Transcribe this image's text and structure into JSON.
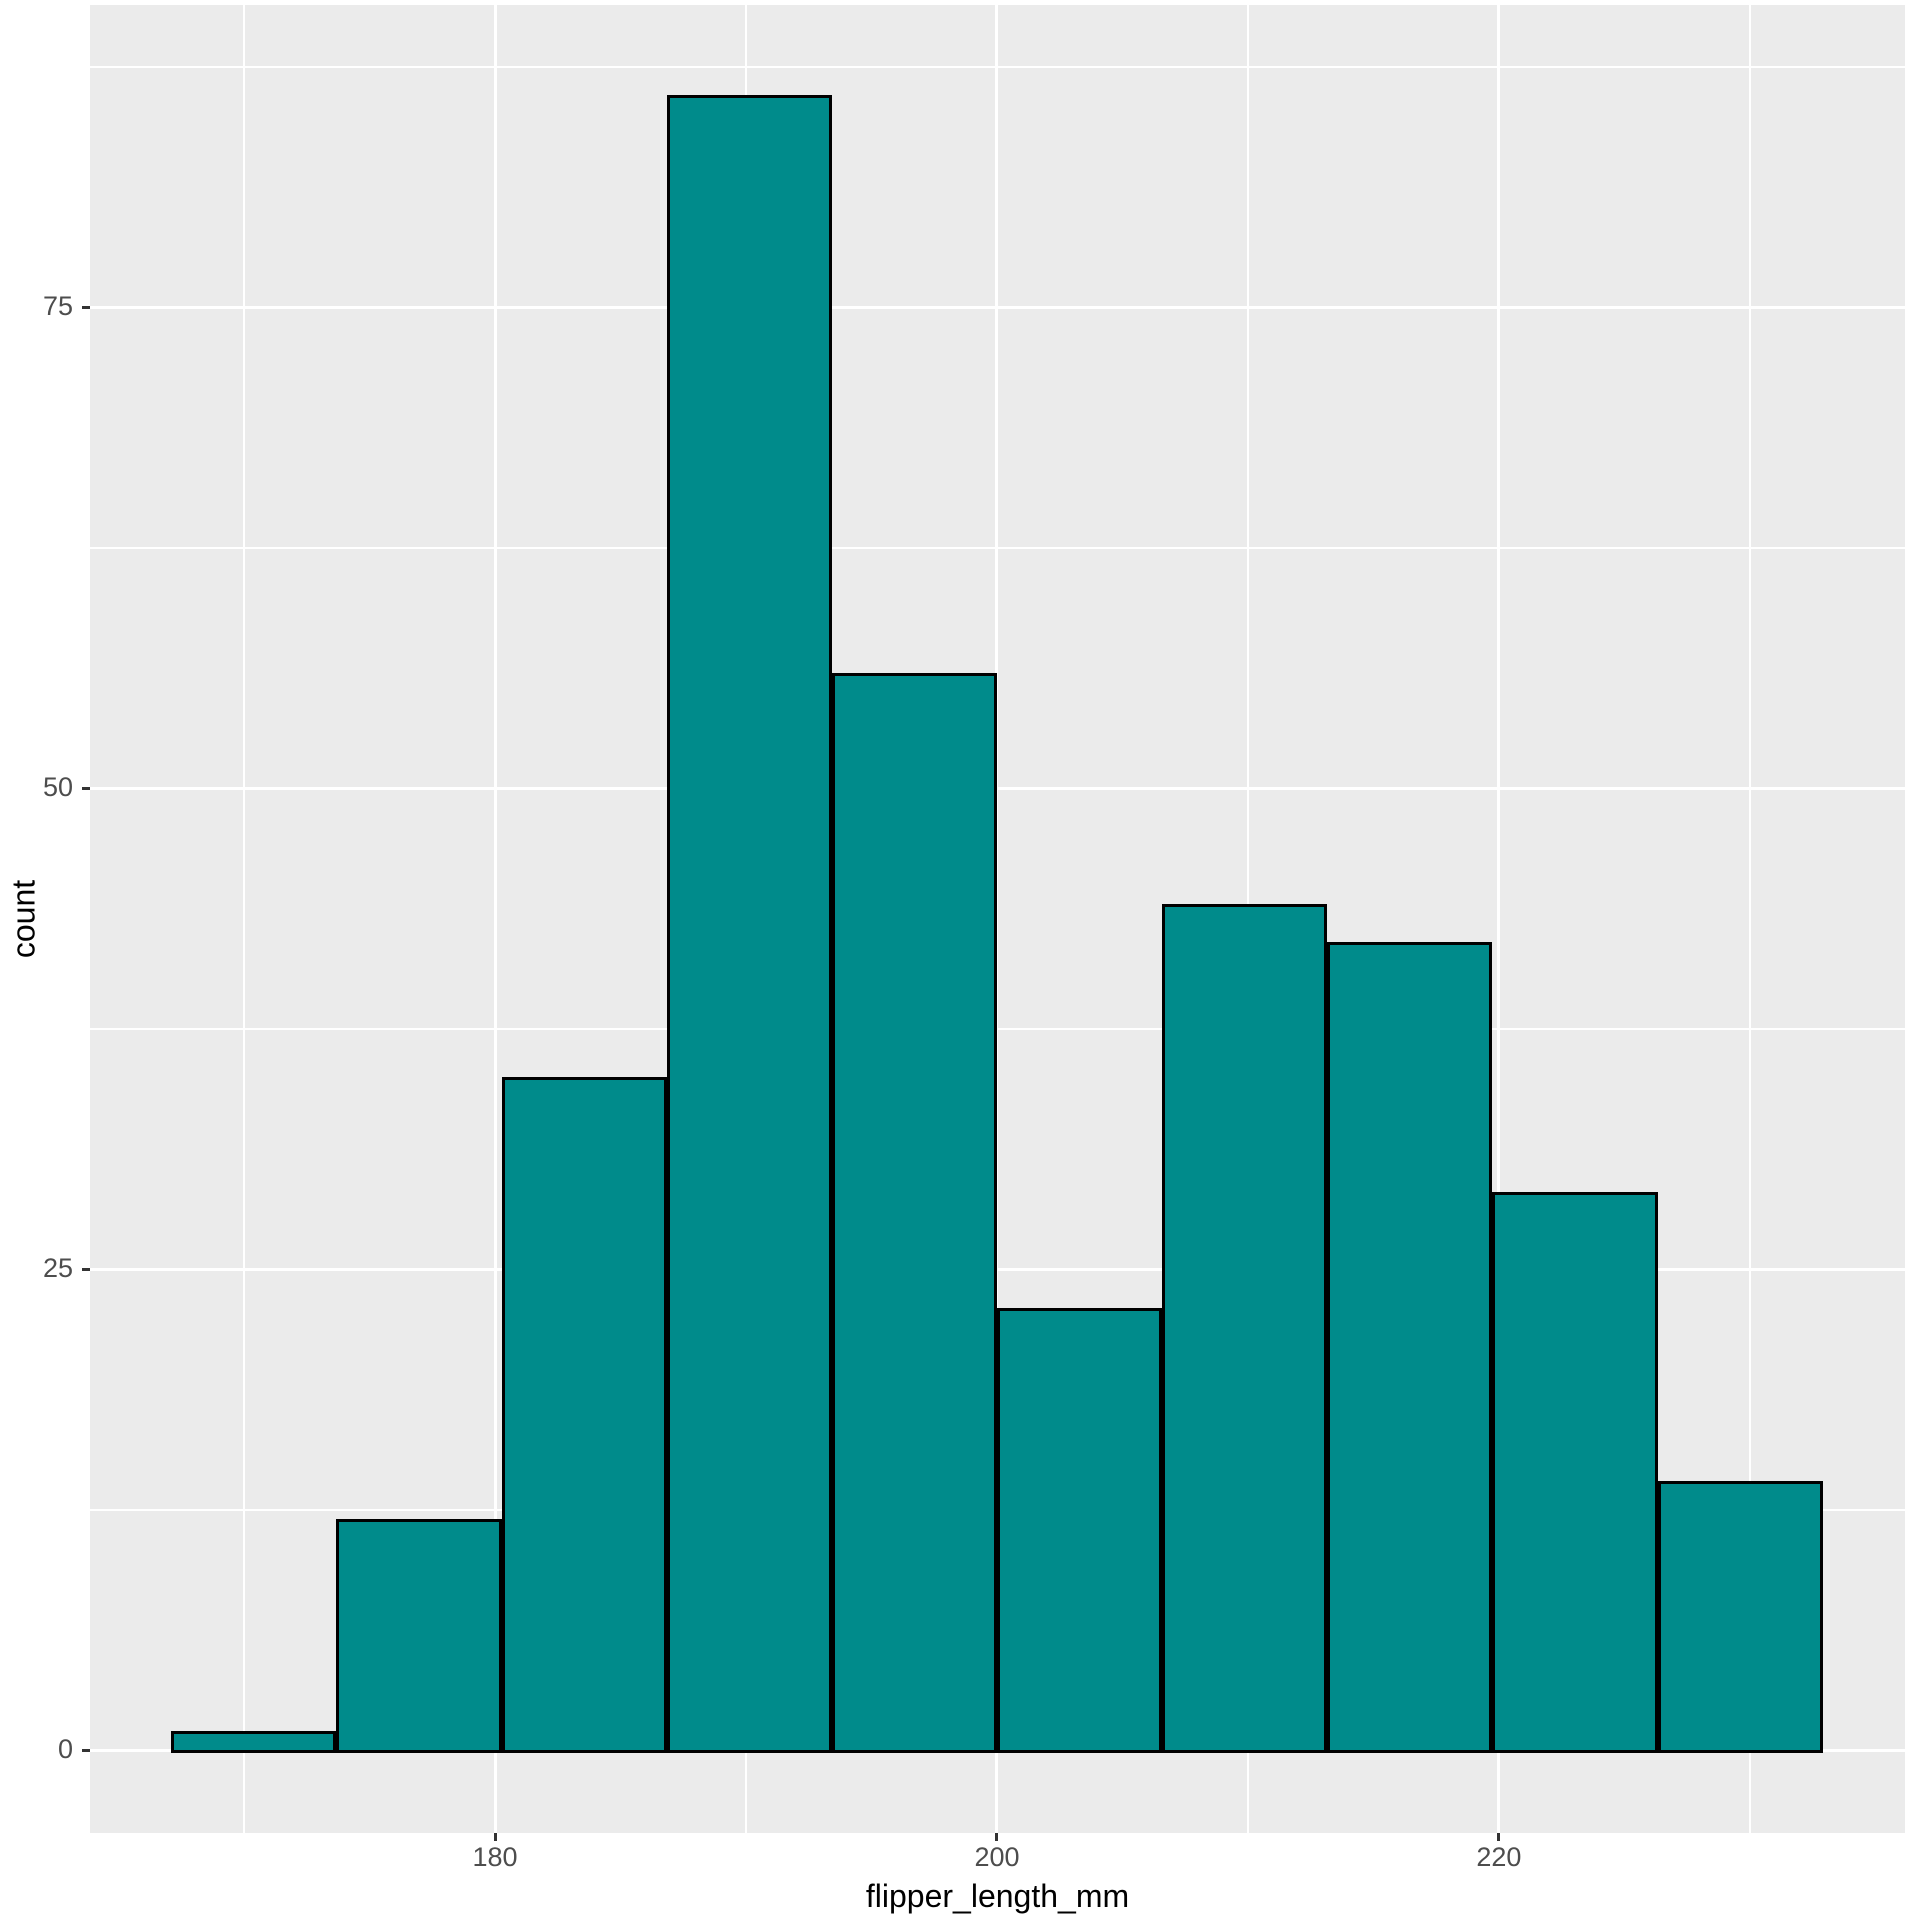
{
  "chart_data": {
    "type": "bar",
    "subtype": "histogram",
    "title": "",
    "xlabel": "flipper_length_mm",
    "ylabel": "count",
    "bin_edges": [
      167.1,
      173.68,
      180.26,
      186.84,
      193.42,
      200.0,
      206.58,
      213.16,
      219.74,
      226.32,
      232.9
    ],
    "counts": [
      1,
      12,
      35,
      86,
      56,
      23,
      44,
      42,
      29,
      14
    ],
    "total_n": 342,
    "x_major_ticks": [
      180,
      200,
      220
    ],
    "x_major_tick_labels": [
      "180",
      "200",
      "220"
    ],
    "x_minor_gridlines": [
      170,
      190,
      210,
      230
    ],
    "y_major_ticks": [
      0,
      25,
      50,
      75
    ],
    "y_major_tick_labels": [
      "0",
      "25",
      "50",
      "75"
    ],
    "y_minor_gridlines": [
      12.5,
      37.5,
      62.5,
      87.5
    ],
    "xlim": [
      163.86,
      236.18
    ],
    "ylim": [
      -4.3,
      90.7
    ],
    "grid": true,
    "legend": false
  },
  "style": {
    "bar_fill": "#008B8B",
    "bar_stroke": "#000000",
    "panel_bg": "#EBEBEB",
    "grid_color": "#FFFFFF",
    "tick_mark_color": "#333333",
    "tick_label_color": "#4D4D4D",
    "axis_title_color": "#000000",
    "background": "#FFFFFF"
  }
}
